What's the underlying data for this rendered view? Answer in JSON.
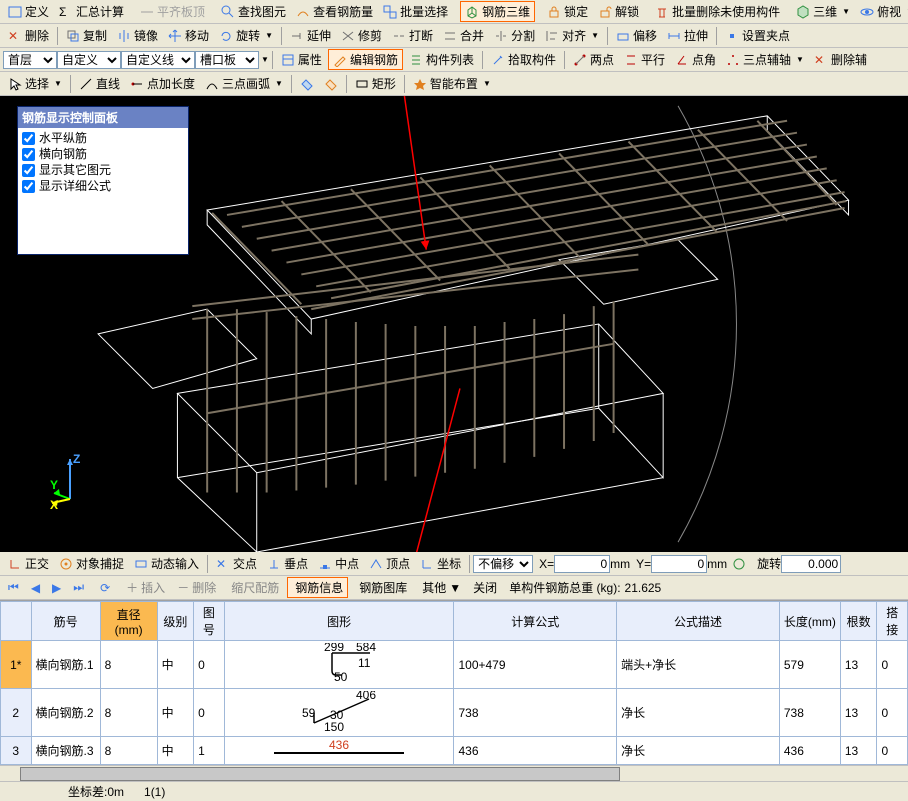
{
  "tb1": {
    "define": "定义",
    "sum": "汇总计算",
    "level": "平齐板顶",
    "find": "查找图元",
    "view_rebar": "查看钢筋量",
    "batch_sel": "批量选择",
    "rebar_3d": "钢筋三维",
    "lock": "锁定",
    "unlock": "解锁",
    "batch_del": "批量删除未使用构件",
    "view3d": "三维",
    "persp": "俯视"
  },
  "tb2": {
    "delete": "删除",
    "copy": "复制",
    "mirror": "镜像",
    "move": "移动",
    "rotate": "旋转",
    "extend": "延伸",
    "trim": "修剪",
    "break": "打断",
    "merge": "合并",
    "split": "分割",
    "align": "对齐",
    "offset": "偏移",
    "stretch": "拉伸",
    "grip": "设置夹点"
  },
  "tb3": {
    "floor": "首层",
    "custom": "自定义",
    "custom_line": "自定义线",
    "slot": "槽口板",
    "props": "属性",
    "edit_rebar": "编辑钢筋",
    "compo_list": "构件列表",
    "pick": "拾取构件",
    "two_pt": "两点",
    "parallel": "平行",
    "pt_angle": "点角",
    "three_pt": "三点辅轴",
    "del_aux": "删除辅"
  },
  "tb4": {
    "select": "选择",
    "line": "直线",
    "pt_len": "点加长度",
    "three_arc": "三点画弧",
    "rect": "矩形",
    "smart": "智能布置"
  },
  "panel": {
    "title": "钢筋显示控制面板",
    "items": [
      "水平纵筋",
      "横向钢筋",
      "显示其它图元",
      "显示详细公式"
    ]
  },
  "tb5": {
    "ortho": "正交",
    "snap": "对象捕捉",
    "dyn": "动态输入",
    "xpt": "交点",
    "perp": "垂点",
    "mid": "中点",
    "apex": "顶点",
    "base": "坐标",
    "no_offset": "不偏移",
    "x_lbl": "X=",
    "x_val": "0",
    "y_lbl": "Y=",
    "y_val": "0",
    "mm": "mm",
    "rot": "旋转",
    "rot_val": "0.000"
  },
  "nav": {
    "insert": "插入",
    "delete": "删除",
    "scale": "缩尺配筋",
    "rebar_info": "钢筋信息",
    "rebar_lib": "钢筋图库",
    "other": "其他",
    "close": "关闭",
    "weight_lbl": "单构件钢筋总重 (kg):",
    "weight": "21.625"
  },
  "table": {
    "cols": [
      "筋号",
      "直径(mm)",
      "级别",
      "图号",
      "图形",
      "计算公式",
      "公式描述",
      "长度(mm)",
      "根数",
      "搭接"
    ],
    "widths": [
      30,
      68,
      56,
      36,
      30,
      226,
      160,
      160,
      60,
      36,
      30
    ],
    "rows": [
      {
        "n": "1*",
        "sel": true,
        "name": "横向钢筋.1",
        "dia": "8",
        "grade": "中",
        "figno": "0",
        "formula": "100+479",
        "desc": "端头+净长",
        "len": "579",
        "count": "13",
        "lap": "0",
        "shape": {
          "type": "hook",
          "labels": [
            "299",
            "584",
            "11",
            "50"
          ]
        }
      },
      {
        "n": "2",
        "name": "横向钢筋.2",
        "dia": "8",
        "grade": "中",
        "figno": "0",
        "formula": "738",
        "desc": "净长",
        "len": "738",
        "count": "13",
        "lap": "0",
        "shape": {
          "type": "diag",
          "labels": [
            "59",
            "30",
            "406",
            "150"
          ]
        }
      },
      {
        "n": "3",
        "name": "横向钢筋.3",
        "dia": "8",
        "grade": "中",
        "figno": "1",
        "formula": "436",
        "desc": "净长",
        "len": "436",
        "count": "13",
        "lap": "0",
        "shape": {
          "type": "straight",
          "labels": [
            "436"
          ]
        }
      }
    ]
  },
  "status": {
    "coord": "坐标差:0m",
    "sel": "1(1)"
  },
  "colors": {
    "ico_blue": "#3b78e7",
    "ico_red": "#d04020",
    "ico_green": "#309040",
    "ico_orange": "#e08020",
    "ico_gray": "#707070",
    "rebar": "#7d7362"
  }
}
